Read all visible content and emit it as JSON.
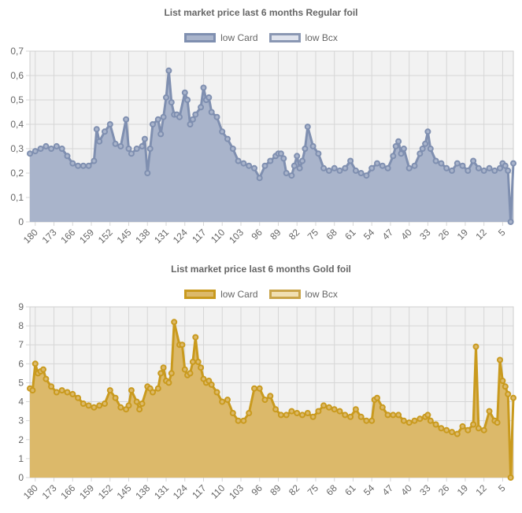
{
  "chart_data": [
    {
      "type": "area",
      "title": "List market price last 6 months Regular foil",
      "legend": [
        "low Card",
        "low Bcx"
      ],
      "legend_position": "top",
      "grid": true,
      "colors": {
        "line": "#7f8fb0",
        "fill": "#a9b4cb",
        "bcx_fill": "#dfe3ed",
        "bcx_border": "#8a97b3",
        "plot_bg": "#f2f2f2",
        "grid": "#d6d6d6"
      },
      "y_ticks": [
        "0",
        "0,1",
        "0,2",
        "0,3",
        "0,4",
        "0,5",
        "0,6",
        "0,7"
      ],
      "ylim": [
        0,
        0.7
      ],
      "x_ticks": [
        "180",
        "173",
        "166",
        "159",
        "152",
        "145",
        "138",
        "131",
        "124",
        "117",
        "110",
        "103",
        "96",
        "89",
        "82",
        "75",
        "68",
        "61",
        "54",
        "47",
        "40",
        "33",
        "26",
        "19",
        "12",
        "5"
      ],
      "xlim": [
        182,
        1
      ],
      "series": [
        {
          "name": "low Card",
          "x": [
            182,
            180,
            178,
            176,
            174,
            172,
            170,
            168,
            166,
            164,
            162,
            160,
            158,
            157,
            156,
            154,
            152,
            150,
            148,
            146,
            145,
            144,
            142,
            140,
            139,
            138,
            137,
            136,
            134,
            133,
            132,
            131,
            130,
            129,
            128,
            127,
            126,
            124,
            123,
            122,
            121,
            120,
            118,
            117,
            116,
            115,
            114,
            112,
            110,
            108,
            106,
            104,
            102,
            100,
            98,
            96,
            94,
            92,
            90,
            89,
            88,
            87,
            86,
            84,
            83,
            82,
            81,
            80,
            79,
            78,
            76,
            74,
            72,
            70,
            68,
            66,
            64,
            62,
            60,
            58,
            56,
            54,
            52,
            50,
            48,
            46,
            45,
            44,
            43,
            42,
            40,
            38,
            36,
            35,
            34,
            33,
            32,
            30,
            28,
            26,
            24,
            22,
            20,
            18,
            16,
            14,
            12,
            10,
            8,
            6,
            5,
            4,
            3,
            2,
            1
          ],
          "y": [
            0.28,
            0.29,
            0.3,
            0.31,
            0.3,
            0.31,
            0.3,
            0.27,
            0.24,
            0.23,
            0.23,
            0.23,
            0.25,
            0.38,
            0.33,
            0.37,
            0.4,
            0.32,
            0.31,
            0.42,
            0.3,
            0.28,
            0.3,
            0.31,
            0.34,
            0.2,
            0.3,
            0.4,
            0.42,
            0.36,
            0.43,
            0.51,
            0.62,
            0.49,
            0.44,
            0.44,
            0.43,
            0.53,
            0.5,
            0.4,
            0.42,
            0.44,
            0.47,
            0.55,
            0.5,
            0.51,
            0.45,
            0.43,
            0.37,
            0.34,
            0.3,
            0.25,
            0.24,
            0.23,
            0.22,
            0.18,
            0.23,
            0.25,
            0.27,
            0.28,
            0.28,
            0.26,
            0.2,
            0.19,
            0.23,
            0.27,
            0.22,
            0.25,
            0.3,
            0.39,
            0.31,
            0.28,
            0.22,
            0.21,
            0.22,
            0.21,
            0.22,
            0.25,
            0.21,
            0.2,
            0.19,
            0.22,
            0.24,
            0.23,
            0.22,
            0.27,
            0.31,
            0.33,
            0.28,
            0.3,
            0.22,
            0.23,
            0.28,
            0.3,
            0.32,
            0.37,
            0.3,
            0.25,
            0.24,
            0.22,
            0.21,
            0.24,
            0.23,
            0.21,
            0.25,
            0.22,
            0.21,
            0.22,
            0.21,
            0.22,
            0.24,
            0.23,
            0.21,
            0.0,
            0.24
          ]
        },
        {
          "name": "low Bcx",
          "x": [],
          "y": []
        }
      ]
    },
    {
      "type": "area",
      "title": "List market price last 6 months Gold foil",
      "legend": [
        "low Card",
        "low Bcx"
      ],
      "legend_position": "top",
      "grid": true,
      "colors": {
        "line": "#c99a1e",
        "fill": "#dcb96a",
        "bcx_fill": "#f0dfb2",
        "bcx_border": "#c9a449",
        "plot_bg": "#f2f2f2",
        "grid": "#d6d6d6"
      },
      "y_ticks": [
        "0",
        "1",
        "2",
        "3",
        "4",
        "5",
        "6",
        "7",
        "8",
        "9"
      ],
      "ylim": [
        0,
        9
      ],
      "x_ticks": [
        "180",
        "173",
        "166",
        "159",
        "152",
        "145",
        "138",
        "131",
        "124",
        "117",
        "110",
        "103",
        "96",
        "89",
        "82",
        "75",
        "68",
        "61",
        "54",
        "47",
        "40",
        "33",
        "26",
        "19",
        "12",
        "5"
      ],
      "xlim": [
        182,
        1
      ],
      "series": [
        {
          "name": "low Card",
          "x": [
            182,
            181,
            180,
            179,
            178,
            177,
            176,
            174,
            172,
            170,
            168,
            166,
            164,
            162,
            160,
            158,
            156,
            154,
            152,
            150,
            148,
            146,
            145,
            144,
            142,
            141,
            140,
            138,
            137,
            136,
            134,
            133,
            132,
            131,
            130,
            129,
            128,
            126,
            125,
            124,
            123,
            122,
            121,
            120,
            119,
            118,
            117,
            116,
            115,
            114,
            112,
            110,
            108,
            106,
            104,
            102,
            100,
            98,
            96,
            94,
            92,
            90,
            88,
            86,
            84,
            82,
            80,
            78,
            76,
            74,
            72,
            70,
            68,
            66,
            64,
            62,
            60,
            58,
            56,
            54,
            53,
            52,
            50,
            48,
            46,
            44,
            42,
            40,
            38,
            36,
            34,
            33,
            32,
            30,
            28,
            26,
            24,
            22,
            20,
            18,
            16,
            15,
            14,
            12,
            10,
            8,
            7,
            6,
            5,
            4,
            3,
            2,
            1
          ],
          "y": [
            4.7,
            4.6,
            6.0,
            5.5,
            5.6,
            5.7,
            5.2,
            4.8,
            4.5,
            4.6,
            4.5,
            4.4,
            4.2,
            3.9,
            3.8,
            3.7,
            3.8,
            3.9,
            4.6,
            4.2,
            3.7,
            3.6,
            3.8,
            4.6,
            4.0,
            3.6,
            3.9,
            4.8,
            4.7,
            4.5,
            4.7,
            5.5,
            5.8,
            5.1,
            5.0,
            5.5,
            8.2,
            7.0,
            7.0,
            5.7,
            5.4,
            5.5,
            6.1,
            7.4,
            6.1,
            5.8,
            5.2,
            5.0,
            5.1,
            4.9,
            4.5,
            4.0,
            4.1,
            3.4,
            3.0,
            3.0,
            3.4,
            4.7,
            4.7,
            4.1,
            4.3,
            3.6,
            3.3,
            3.3,
            3.5,
            3.4,
            3.3,
            3.4,
            3.2,
            3.5,
            3.8,
            3.7,
            3.6,
            3.5,
            3.3,
            3.2,
            3.6,
            3.2,
            3.0,
            3.0,
            4.1,
            4.2,
            3.7,
            3.3,
            3.3,
            3.3,
            3.0,
            2.9,
            3.0,
            3.1,
            3.2,
            3.3,
            3.0,
            2.8,
            2.6,
            2.5,
            2.4,
            2.3,
            2.7,
            2.5,
            2.8,
            6.9,
            2.6,
            2.5,
            3.5,
            3.0,
            2.9,
            6.2,
            5.1,
            4.8,
            4.4,
            0.0,
            4.2
          ]
        },
        {
          "name": "low Bcx",
          "x": [],
          "y": []
        }
      ]
    }
  ]
}
